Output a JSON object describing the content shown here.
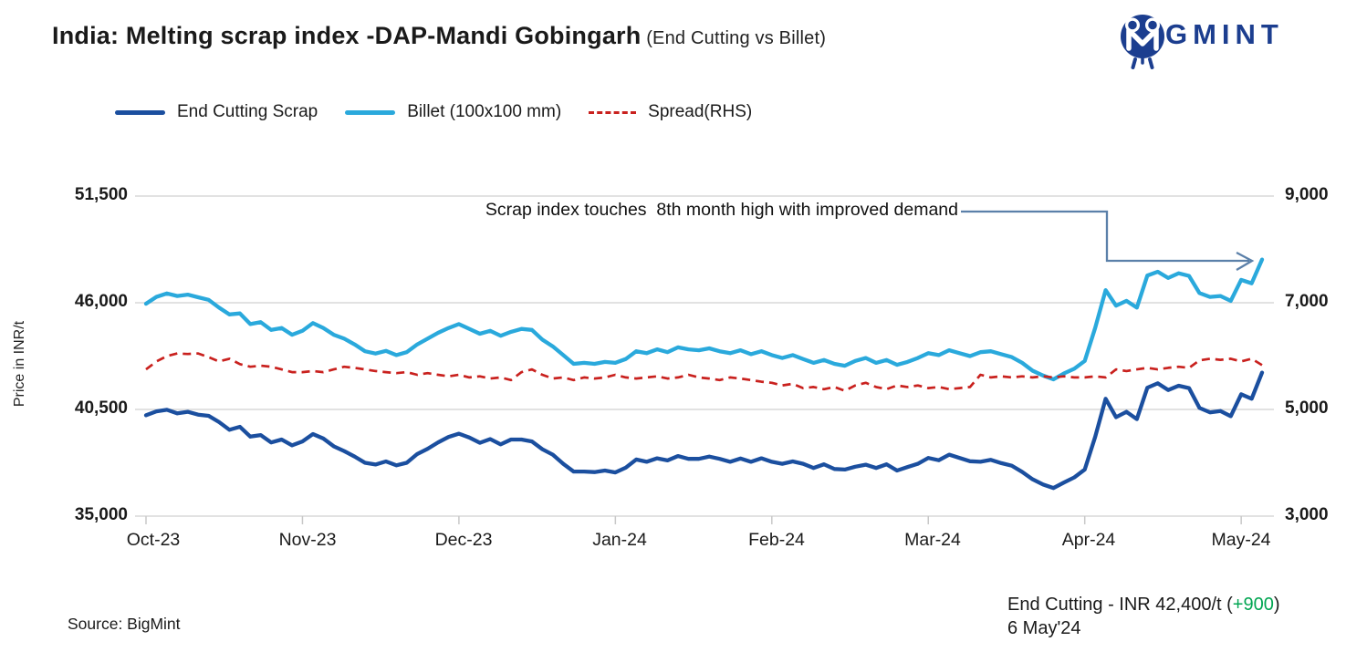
{
  "header": {
    "title": "India: Melting scrap index -DAP-Mandi Gobingarh",
    "subtitle": " (End Cutting vs Billet)",
    "brand": "BIGMINT"
  },
  "colors": {
    "end_cutting_line": "#1b4f9f",
    "billet_line": "#2aa9dc",
    "spread_line": "#c9211e",
    "brand_navy": "#1c3e8f",
    "accent_green": "#00a551",
    "annotation_arrow": "#5b80a9",
    "gridline": "#d9d9d9"
  },
  "annotation": {
    "text": "Scrap index touches  8th month high with improved demand"
  },
  "footer": {
    "source": "Source: BigMint",
    "price_prefix": "End Cutting - INR 42,400/t (",
    "price_change": "+900",
    "price_suffix": ")",
    "date": "6 May'24"
  },
  "chart_data": {
    "type": "line",
    "title": "India: Melting scrap index -DAP-Mandi Gobingarh (End Cutting vs Billet)",
    "legend_position": "top-left",
    "grid": "horizontal",
    "x_tick_labels": [
      "Oct-23",
      "Nov-23",
      "Dec-23",
      "Jan-24",
      "Feb-24",
      "Mar-24",
      "Apr-24",
      "May-24"
    ],
    "x_tick_indices": [
      0,
      15,
      30,
      45,
      60,
      75,
      90,
      105
    ],
    "y_left": {
      "label": "Price in INR/t",
      "min": 35000,
      "max": 51500,
      "ticks": [
        51500,
        46000,
        40500,
        35000
      ],
      "tick_labels": [
        "51,500",
        "46,000",
        "40,500",
        "35,000"
      ]
    },
    "y_right": {
      "label": "Spread",
      "min": 3000,
      "max": 9000,
      "ticks": [
        9000,
        7000,
        5000,
        3000
      ],
      "tick_labels": [
        "9,000",
        "7,000",
        "5,000",
        "3,000"
      ]
    },
    "series": [
      {
        "name": "End Cutting Scrap",
        "axis": "left",
        "style": "solid",
        "color": "#1b4f9f",
        "values": [
          40200,
          40400,
          40480,
          40300,
          40380,
          40230,
          40170,
          39850,
          39450,
          39600,
          39100,
          39180,
          38800,
          38950,
          38650,
          38850,
          39230,
          39000,
          38600,
          38350,
          38070,
          37750,
          37660,
          37820,
          37620,
          37750,
          38200,
          38470,
          38800,
          39080,
          39250,
          39050,
          38780,
          38970,
          38700,
          38950,
          38950,
          38850,
          38450,
          38170,
          37700,
          37300,
          37300,
          37270,
          37350,
          37250,
          37500,
          37920,
          37800,
          37980,
          37870,
          38100,
          37950,
          37950,
          38070,
          37950,
          37800,
          37970,
          37800,
          37980,
          37800,
          37700,
          37820,
          37700,
          37480,
          37670,
          37430,
          37400,
          37550,
          37650,
          37480,
          37670,
          37350,
          37530,
          37700,
          38000,
          37880,
          38170,
          38000,
          37830,
          37800,
          37900,
          37730,
          37600,
          37280,
          36900,
          36630,
          36450,
          36730,
          37000,
          37400,
          39080,
          41050,
          40100,
          40380,
          40000,
          41620,
          41850,
          41500,
          41720,
          41600,
          40580,
          40350,
          40420,
          40150,
          41280,
          41050,
          42400
        ]
      },
      {
        "name": "Billet (100x100 mm)",
        "axis": "left",
        "style": "solid",
        "color": "#2aa9dc",
        "values": [
          45950,
          46300,
          46480,
          46350,
          46420,
          46280,
          46150,
          45750,
          45400,
          45450,
          44900,
          45000,
          44600,
          44700,
          44350,
          44550,
          44950,
          44700,
          44350,
          44150,
          43850,
          43500,
          43380,
          43520,
          43300,
          43450,
          43850,
          44150,
          44450,
          44700,
          44900,
          44650,
          44400,
          44550,
          44300,
          44500,
          44650,
          44600,
          44100,
          43750,
          43300,
          42850,
          42900,
          42850,
          42950,
          42900,
          43100,
          43500,
          43400,
          43600,
          43450,
          43700,
          43600,
          43550,
          43650,
          43500,
          43400,
          43550,
          43350,
          43500,
          43300,
          43150,
          43300,
          43100,
          42900,
          43050,
          42850,
          42750,
          43000,
          43150,
          42900,
          43050,
          42800,
          42950,
          43150,
          43400,
          43300,
          43550,
          43400,
          43250,
          43450,
          43500,
          43350,
          43200,
          42900,
          42500,
          42250,
          42050,
          42350,
          42600,
          43000,
          44700,
          46650,
          45850,
          46100,
          45750,
          47400,
          47600,
          47280,
          47520,
          47380,
          46500,
          46300,
          46350,
          46100,
          47180,
          47000,
          48230
        ]
      },
      {
        "name": "Spread(RHS)",
        "axis": "right",
        "style": "dashed",
        "color": "#c9211e",
        "values": [
          5750,
          5900,
          6000,
          6050,
          6040,
          6050,
          5980,
          5900,
          5950,
          5850,
          5800,
          5820,
          5800,
          5750,
          5700,
          5700,
          5720,
          5700,
          5750,
          5800,
          5780,
          5750,
          5720,
          5700,
          5680,
          5700,
          5650,
          5680,
          5650,
          5620,
          5650,
          5600,
          5620,
          5580,
          5600,
          5550,
          5700,
          5750,
          5650,
          5580,
          5600,
          5550,
          5600,
          5580,
          5600,
          5650,
          5600,
          5580,
          5600,
          5620,
          5580,
          5600,
          5650,
          5600,
          5580,
          5550,
          5600,
          5580,
          5550,
          5520,
          5500,
          5450,
          5480,
          5400,
          5420,
          5380,
          5420,
          5350,
          5450,
          5500,
          5420,
          5380,
          5450,
          5420,
          5450,
          5400,
          5420,
          5380,
          5400,
          5420,
          5650,
          5600,
          5620,
          5600,
          5620,
          5600,
          5620,
          5600,
          5620,
          5600,
          5600,
          5620,
          5600,
          5750,
          5720,
          5750,
          5780,
          5750,
          5780,
          5800,
          5780,
          5920,
          5950,
          5930,
          5950,
          5900,
          5950,
          5830
        ]
      }
    ],
    "latest_point": {
      "series": "End Cutting Scrap",
      "value": 42400,
      "change": 900,
      "date": "6 May'24"
    }
  }
}
